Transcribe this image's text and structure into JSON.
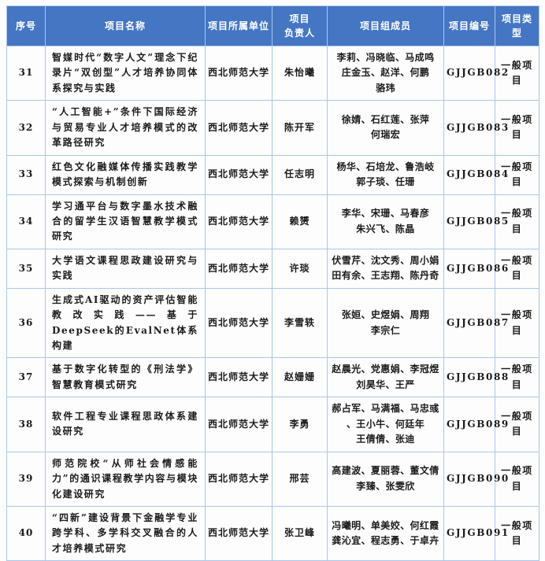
{
  "colors": {
    "header_bg": "#4576c4",
    "border": "#a9c7e9",
    "header_text": "#ffffff",
    "body_text": "#1b1b1b"
  },
  "table": {
    "headers": [
      "序号",
      "项目名称",
      "项目所属单位",
      "项目\n负责人",
      "项目组成员",
      "项目编号",
      "项目类型"
    ],
    "rows": [
      {
        "no": "31",
        "name": "智媒时代“数字人文”理念下纪录片“双创型”人才培养协同体系探究与实践",
        "unit": "西北师范大学",
        "leader": "朱怡曦",
        "members": "李莉、冯晓临、马成鸣\n庄金玉、赵洋、何鹏\n骆玮",
        "code": "GJJGB082",
        "type": "一般项目"
      },
      {
        "no": "32",
        "name": "“人工智能+”条件下国际经济与贸易专业人才培养模式的改革路径研究",
        "unit": "西北师范大学",
        "leader": "陈开军",
        "members": "徐婧、石红莲、张萍\n何瑞宏",
        "code": "GJJGB083",
        "type": "一般项目"
      },
      {
        "no": "33",
        "name": "红色文化融媒体传播实践教学模式探索与机制创新",
        "unit": "西北师范大学",
        "leader": "任志明",
        "members": "杨华、石培龙、鲁浩岐\n郭子琰、任珊",
        "code": "GJJGB084",
        "type": "一般项目"
      },
      {
        "no": "34",
        "name": "学习通平台与数字墨水技术融合的留学生汉语智慧教学模式研究",
        "unit": "西北师范大学",
        "leader": "赖赟",
        "members": "李华、宋珊、马春彦\n朱兴飞、陈晶",
        "code": "GJJGB085",
        "type": "一般项目"
      },
      {
        "no": "35",
        "name": "大学语文课程思政建设研究与实践",
        "unit": "西北师范大学",
        "leader": "许琰",
        "members": "伏雪芹、沈文秀、周小娟\n田有余、王志翔、陈丹奇",
        "code": "GJJGB086",
        "type": "一般项目"
      },
      {
        "no": "36",
        "name": "生成式AI驱动的资产评估智能教改实践——基于DeepSeek的EvalNet体系构建",
        "unit": "西北师范大学",
        "leader": "李雪轶",
        "members": "张姮、史煜娟、周翔\n李宗仁",
        "code": "GJJGB087",
        "type": "一般项目"
      },
      {
        "no": "37",
        "name": "基于数字化转型的《刑法学》智慧教育模式研究",
        "unit": "西北师范大学",
        "leader": "赵姗姗",
        "members": "赵晨光、党惠娟、李冠煜\n刘昊华、王严",
        "code": "GJJGB088",
        "type": "一般项目"
      },
      {
        "no": "38",
        "name": "软件工程专业课程思政体系建设研究",
        "unit": "西北师范大学",
        "leader": "李勇",
        "members": "郝占军、马满福、马忠彧\n、王小牛、何廷年\n王倩倩、张迪",
        "code": "GJJGB089",
        "type": "一般项目"
      },
      {
        "no": "39",
        "name": "师范院校“从师社会情感能力”的通识课程教学内容与模块化建设研究",
        "unit": "西北师范大学",
        "leader": "邢芸",
        "members": "高建波、夏丽蓉、董文倩\n李臻、张雯欣",
        "code": "GJJGB090",
        "type": "一般项目"
      },
      {
        "no": "40",
        "name": "“四新”建设背景下金融学专业跨学科、多学科交叉融合的人才培养模式研究",
        "unit": "西北师范大学",
        "leader": "张卫峰",
        "members": "冯曦明、单美姣、何红霞\n龚沁宜、程志勇、于卓卉",
        "code": "GJJGB091",
        "type": "一般项目"
      }
    ]
  }
}
